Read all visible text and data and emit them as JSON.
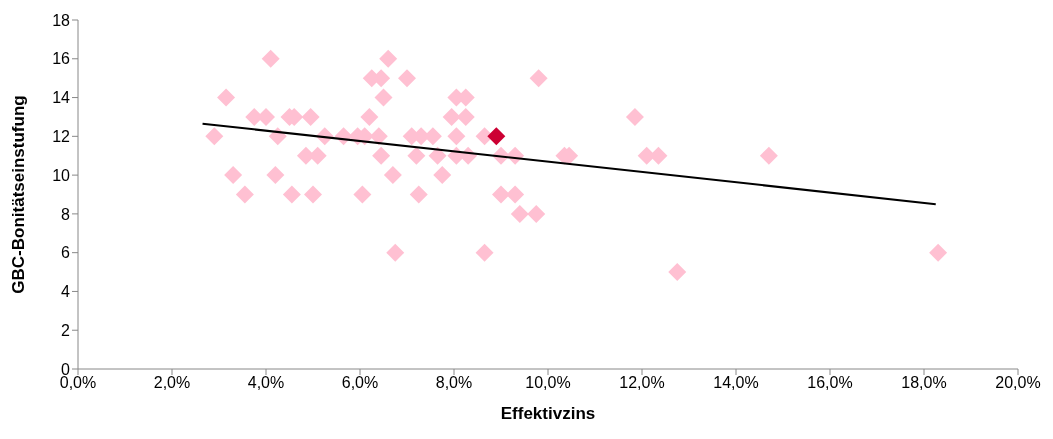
{
  "chart_data": {
    "type": "scatter",
    "xlabel": "Effektivzins",
    "ylabel": "GBC-Bonitätseinstufung",
    "xlim": [
      0,
      20
    ],
    "xticks": [
      {
        "value": 0,
        "label": "0,0%"
      },
      {
        "value": 2,
        "label": "2,0%"
      },
      {
        "value": 4,
        "label": "4,0%"
      },
      {
        "value": 6,
        "label": "6,0%"
      },
      {
        "value": 8,
        "label": "8,0%"
      },
      {
        "value": 10,
        "label": "10,0%"
      },
      {
        "value": 12,
        "label": "12,0%"
      },
      {
        "value": 14,
        "label": "14,0%"
      },
      {
        "value": 16,
        "label": "16,0%"
      },
      {
        "value": 18,
        "label": "18,0%"
      },
      {
        "value": 20,
        "label": "20,0%"
      }
    ],
    "ylim": [
      0,
      18
    ],
    "yticks": [
      0,
      2,
      4,
      6,
      8,
      10,
      12,
      14,
      16,
      18
    ],
    "marker": "diamond",
    "series": [
      {
        "type": "scatter",
        "color": "#ffc0d2",
        "x": [
          4.1,
          6.6,
          6.25,
          6.45,
          7.0,
          9.8,
          3.15,
          6.5,
          8.05,
          8.25,
          3.75,
          4.0,
          4.5,
          4.6,
          4.95,
          6.2,
          7.95,
          8.25,
          11.85,
          2.9,
          4.25,
          5.25,
          5.65,
          5.95,
          6.1,
          6.4,
          7.1,
          7.3,
          7.55,
          8.05,
          8.65,
          4.85,
          5.1,
          6.45,
          7.2,
          7.65,
          8.05,
          8.3,
          9.0,
          9.3,
          10.35,
          10.45,
          12.1,
          12.35,
          14.7,
          3.3,
          4.2,
          6.7,
          7.75,
          3.55,
          4.55,
          5.0,
          6.05,
          7.25,
          9.0,
          9.3,
          9.4,
          9.75,
          6.75,
          8.65,
          18.3,
          12.75
        ],
        "values": [
          16,
          16,
          15,
          15,
          15,
          15,
          14,
          14,
          14,
          14,
          13,
          13,
          13,
          13,
          13,
          13,
          13,
          13,
          13,
          12,
          12,
          12,
          12,
          12,
          12,
          12,
          12,
          12,
          12,
          12,
          12,
          11,
          11,
          11,
          11,
          11,
          11,
          11,
          11,
          11,
          11,
          11,
          11,
          11,
          11,
          10,
          10,
          10,
          10,
          9,
          9,
          9,
          9,
          9,
          9,
          9,
          8,
          8,
          6,
          6,
          6,
          5
        ]
      },
      {
        "type": "scatter",
        "color": "#cc0033",
        "x": [
          8.9
        ],
        "values": [
          12
        ]
      },
      {
        "type": "line",
        "color": "#000000",
        "line_style": "solid",
        "marker": "none",
        "x": [
          2.65,
          18.25
        ],
        "values": [
          12.65,
          8.5
        ]
      }
    ]
  }
}
